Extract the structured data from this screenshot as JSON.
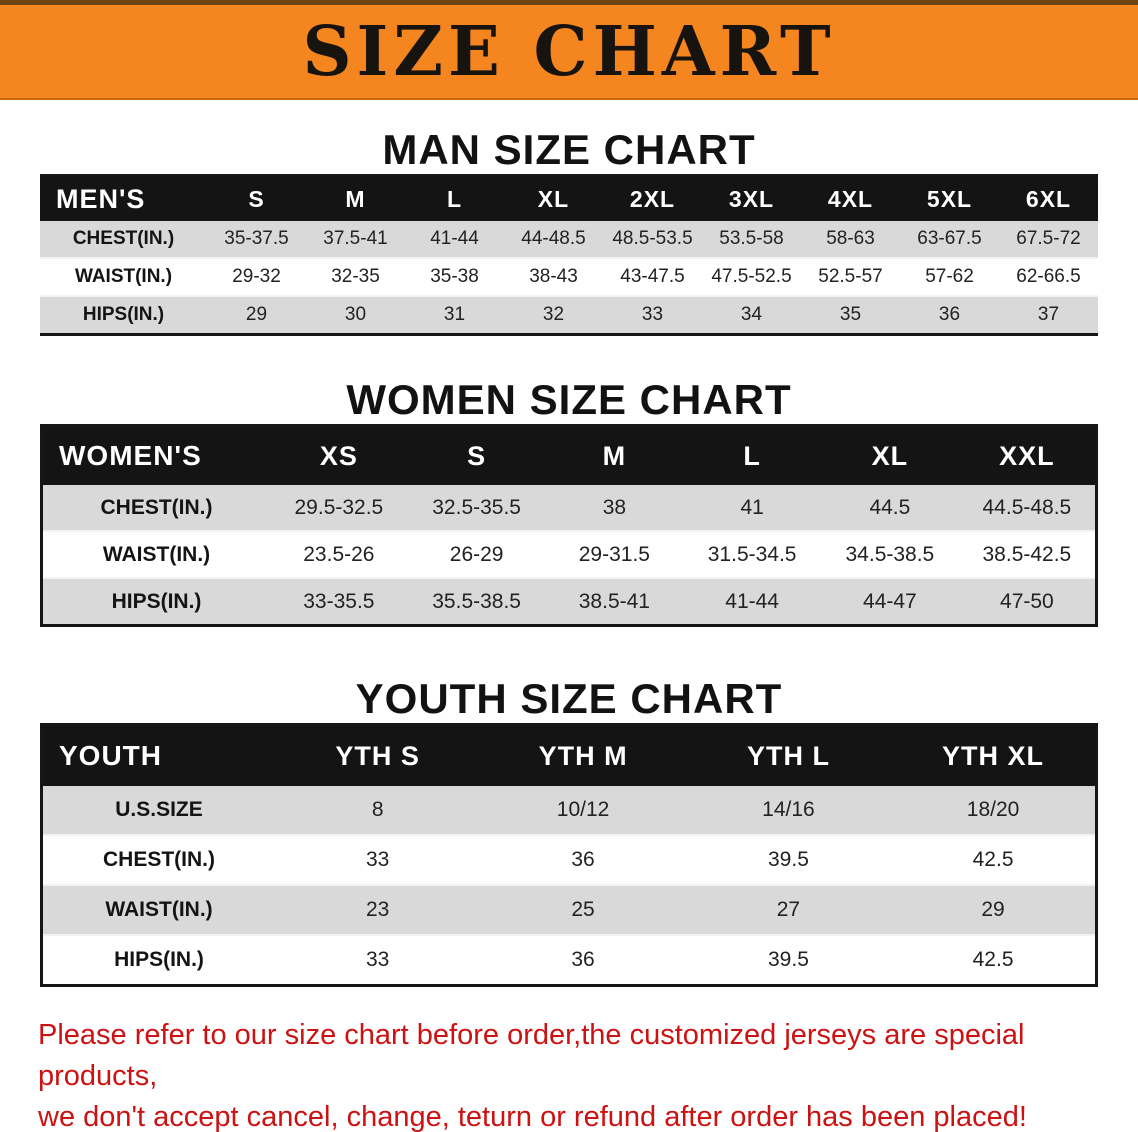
{
  "banner": {
    "title": "SIZE CHART"
  },
  "sections": [
    {
      "heading": "MAN SIZE CHART",
      "table": {
        "header": [
          "MEN'S",
          "S",
          "M",
          "L",
          "XL",
          "2XL",
          "3XL",
          "4XL",
          "5XL",
          "6XL"
        ],
        "rows": [
          [
            "CHEST(IN.)",
            "35-37.5",
            "37.5-41",
            "41-44",
            "44-48.5",
            "48.5-53.5",
            "53.5-58",
            "58-63",
            "63-67.5",
            "67.5-72"
          ],
          [
            "WAIST(IN.)",
            "29-32",
            "32-35",
            "35-38",
            "38-43",
            "43-47.5",
            "47.5-52.5",
            "52.5-57",
            "57-62",
            "62-66.5"
          ],
          [
            "HIPS(IN.)",
            "29",
            "30",
            "31",
            "32",
            "33",
            "34",
            "35",
            "36",
            "37"
          ]
        ]
      }
    },
    {
      "heading": "WOMEN SIZE CHART",
      "table": {
        "header": [
          "WOMEN'S",
          "XS",
          "S",
          "M",
          "L",
          "XL",
          "XXL"
        ],
        "rows": [
          [
            "CHEST(IN.)",
            "29.5-32.5",
            "32.5-35.5",
            "38",
            "41",
            "44.5",
            "44.5-48.5"
          ],
          [
            "WAIST(IN.)",
            "23.5-26",
            "26-29",
            "29-31.5",
            "31.5-34.5",
            "34.5-38.5",
            "38.5-42.5"
          ],
          [
            "HIPS(IN.)",
            "33-35.5",
            "35.5-38.5",
            "38.5-41",
            "41-44",
            "44-47",
            "47-50"
          ]
        ]
      }
    },
    {
      "heading": "YOUTH SIZE CHART",
      "table": {
        "header": [
          "YOUTH",
          "YTH S",
          "YTH M",
          "YTH L",
          "YTH XL"
        ],
        "rows": [
          [
            "U.S.SIZE",
            "8",
            "10/12",
            "14/16",
            "18/20"
          ],
          [
            "CHEST(IN.)",
            "33",
            "36",
            "39.5",
            "42.5"
          ],
          [
            "WAIST(IN.)",
            "23",
            "25",
            "27",
            "29"
          ],
          [
            "HIPS(IN.)",
            "33",
            "36",
            "39.5",
            "42.5"
          ]
        ]
      }
    }
  ],
  "footer": {
    "line1": "Please refer to our size chart before order,the customized jerseys are special products,",
    "line2": "we don't accept cancel, change, teturn or refund after order has been placed!"
  },
  "colors": {
    "banner_bg": "#f5861f",
    "header_bg": "#141414",
    "row_alt": "#d9d9d9",
    "footer_red": "#cc1212"
  }
}
